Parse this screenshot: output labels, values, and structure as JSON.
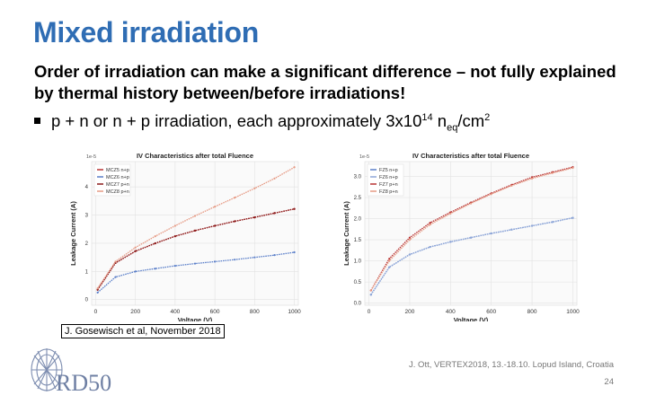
{
  "title": "Mixed irradiation",
  "paragraph": "Order of irradiation can make a significant difference – not fully explained by thermal history between/before irradiations!",
  "bullet": {
    "pre": "p + n or n + p irradiation, each approximately 3x10",
    "exp": "14",
    "mid": " n",
    "sub": "eq",
    "post": "/cm",
    "exp2": "2"
  },
  "citation": "J. Gosewisch et al, November 2018",
  "footer": "J. Ott, VERTEX2018, 13.-18.10. Lopud Island, Croatia",
  "page_number": "24",
  "logo_text": "RD50",
  "colors": {
    "title": "#2f6db4",
    "series_blue": "#5b7fc9",
    "series_red": "#b83232",
    "series_darkred": "#8c1c1c",
    "series_salmon": "#e69a84"
  },
  "chart_data": [
    {
      "type": "line",
      "title": "IV Characteristics after total Fluence",
      "scale_label": "1e-5",
      "xlabel": "Voltage (V)",
      "ylabel": "Leakage Current (A)",
      "xlim": [
        -20,
        1020
      ],
      "ylim": [
        -0.2,
        4.9
      ],
      "xticks": [
        0,
        200,
        400,
        600,
        800,
        1000
      ],
      "yticks": [
        0,
        1,
        2,
        3,
        4
      ],
      "grid": true,
      "legend_position": "top-left",
      "series": [
        {
          "name": "MCZ5 n+p",
          "color": "#b83232",
          "x": [
            10,
            100,
            200,
            300,
            400,
            500,
            600,
            700,
            800,
            900,
            1000
          ],
          "y": [
            0.35,
            1.3,
            1.72,
            2.0,
            2.25,
            2.45,
            2.62,
            2.78,
            2.92,
            3.07,
            3.22
          ]
        },
        {
          "name": "MCZ6 n+p",
          "color": "#5b7fc9",
          "x": [
            10,
            100,
            200,
            300,
            400,
            500,
            600,
            700,
            800,
            900,
            1000
          ],
          "y": [
            0.25,
            0.8,
            1.0,
            1.1,
            1.2,
            1.28,
            1.35,
            1.42,
            1.5,
            1.58,
            1.68
          ]
        },
        {
          "name": "MCZ7 p+n",
          "color": "#8c1c1c",
          "x": [
            10,
            100,
            200,
            300,
            400,
            500,
            600,
            700,
            800,
            900,
            1000
          ],
          "y": [
            0.35,
            1.3,
            1.72,
            2.0,
            2.25,
            2.45,
            2.62,
            2.78,
            2.92,
            3.07,
            3.22
          ]
        },
        {
          "name": "MCZ8 p+n",
          "color": "#e69a84",
          "x": [
            10,
            100,
            200,
            300,
            400,
            500,
            600,
            700,
            800,
            900,
            1000
          ],
          "y": [
            0.4,
            1.35,
            1.85,
            2.25,
            2.62,
            2.97,
            3.3,
            3.62,
            3.95,
            4.3,
            4.7
          ]
        }
      ]
    },
    {
      "type": "line",
      "title": "IV Characteristics after total Fluence",
      "scale_label": "1e-5",
      "xlabel": "Voltage (V)",
      "ylabel": "Leakage Current (A)",
      "xlim": [
        -20,
        1020
      ],
      "ylim": [
        -0.05,
        3.35
      ],
      "xticks": [
        0,
        200,
        400,
        600,
        800,
        1000
      ],
      "yticks": [
        0.0,
        0.5,
        1.0,
        1.5,
        2.0,
        2.5,
        3.0
      ],
      "grid": true,
      "legend_position": "top-left",
      "series": [
        {
          "name": "FZ5 n+p",
          "color": "#5b7fc9",
          "x": [
            10,
            100,
            200,
            300,
            400,
            500,
            600,
            700,
            800,
            900,
            1000
          ],
          "y": [
            0.2,
            0.85,
            1.15,
            1.33,
            1.45,
            1.55,
            1.65,
            1.74,
            1.83,
            1.92,
            2.02
          ]
        },
        {
          "name": "FZ6 n+p",
          "color": "#8fa7d8",
          "x": [
            10,
            100,
            200,
            300,
            400,
            500,
            600,
            700,
            800,
            900,
            1000
          ],
          "y": [
            0.2,
            0.85,
            1.15,
            1.33,
            1.45,
            1.55,
            1.65,
            1.74,
            1.83,
            1.92,
            2.02
          ]
        },
        {
          "name": "FZ7 p+n",
          "color": "#b83232",
          "x": [
            10,
            100,
            200,
            300,
            400,
            500,
            600,
            700,
            800,
            900,
            1000
          ],
          "y": [
            0.3,
            1.05,
            1.55,
            1.9,
            2.15,
            2.38,
            2.6,
            2.8,
            2.98,
            3.1,
            3.22
          ]
        },
        {
          "name": "FZ8 p+n",
          "color": "#e69a84",
          "x": [
            10,
            100,
            200,
            300,
            400,
            500,
            600,
            700,
            800,
            900,
            1000
          ],
          "y": [
            0.3,
            1.0,
            1.5,
            1.86,
            2.12,
            2.36,
            2.58,
            2.78,
            2.95,
            3.08,
            3.2
          ]
        }
      ]
    }
  ]
}
